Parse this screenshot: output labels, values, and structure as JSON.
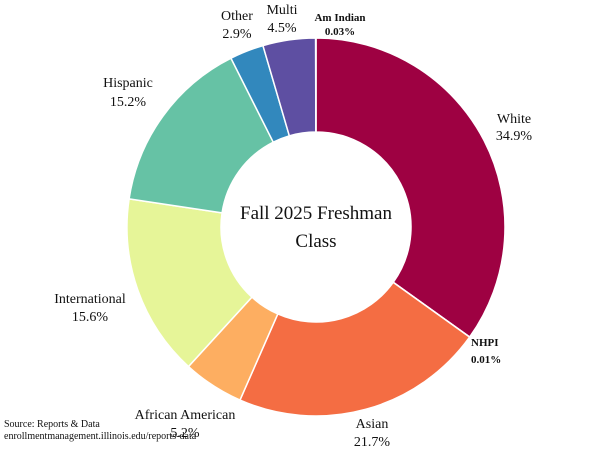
{
  "chart_data": {
    "type": "pie",
    "style": "donut",
    "title_lines": [
      "Fall 2025 Freshman",
      "Class"
    ],
    "slices": [
      {
        "label": "White",
        "value": 34.9,
        "value_text": "34.9%",
        "color": "#9e0142"
      },
      {
        "label": "NHPI",
        "value": 0.01,
        "value_text": "0.01%",
        "color": "#b8183f"
      },
      {
        "label": "Asian",
        "value": 21.7,
        "value_text": "21.7%",
        "color": "#f46d43"
      },
      {
        "label": "African American",
        "value": 5.2,
        "value_text": "5.2%",
        "color": "#fdae61"
      },
      {
        "label": "International",
        "value": 15.6,
        "value_text": "15.6%",
        "color": "#e6f598"
      },
      {
        "label": "Hispanic",
        "value": 15.2,
        "value_text": "15.2%",
        "color": "#66c2a5"
      },
      {
        "label": "Other",
        "value": 2.9,
        "value_text": "2.9%",
        "color": "#3288bd"
      },
      {
        "label": "Multi",
        "value": 4.5,
        "value_text": "4.5%",
        "color": "#5e4fa2"
      },
      {
        "label": "Am Indian",
        "value": 0.03,
        "value_text": "0.03%",
        "color": "#4a3a8c"
      }
    ]
  },
  "source": {
    "line1": "Source: Reports & Data",
    "line2": "enrollmentmanagement.illinois.edu/reports-data"
  }
}
